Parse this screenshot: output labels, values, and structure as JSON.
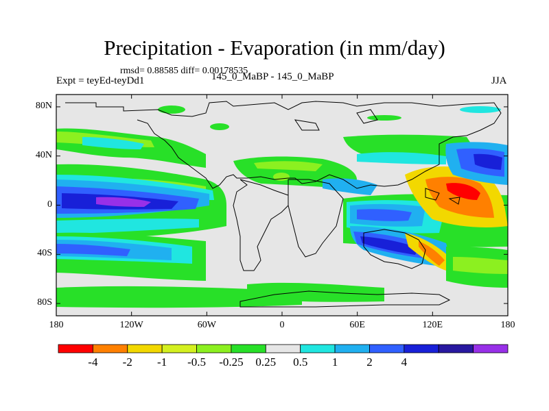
{
  "title": "Precipitation - Evaporation (in mm/day)",
  "stats": "rmsd= 0.88585 diff= 0.00178535",
  "left_label": "Expt = teyEd-teyDd1",
  "center_label": "145_0_MaBP - 145_0_MaBP",
  "right_label": "JJA",
  "axes": {
    "y_ticks": [
      {
        "label": "80N",
        "lat": 80
      },
      {
        "label": "40N",
        "lat": 40
      },
      {
        "label": "0",
        "lat": 0
      },
      {
        "label": "40S",
        "lat": -40
      },
      {
        "label": "80S",
        "lat": -80
      }
    ],
    "x_ticks": [
      {
        "label": "180",
        "lon": -180
      },
      {
        "label": "120W",
        "lon": -120
      },
      {
        "label": "60W",
        "lon": -60
      },
      {
        "label": "0",
        "lon": 0
      },
      {
        "label": "60E",
        "lon": 60
      },
      {
        "label": "120E",
        "lon": 120
      },
      {
        "label": "180",
        "lon": 180
      }
    ]
  },
  "colorbar": {
    "colors": [
      "#ff0000",
      "#ff8000",
      "#f2d800",
      "#d4f020",
      "#8cf020",
      "#28e028",
      "#e6e6e6",
      "#20e6e0",
      "#20b0f0",
      "#3060ff",
      "#1820d8",
      "#2818a0",
      "#9830e8"
    ],
    "labels": [
      "-4",
      "-2",
      "-1",
      "-0.5",
      "-0.25",
      "0.25",
      "0.5",
      "1",
      "2",
      "4"
    ]
  }
}
